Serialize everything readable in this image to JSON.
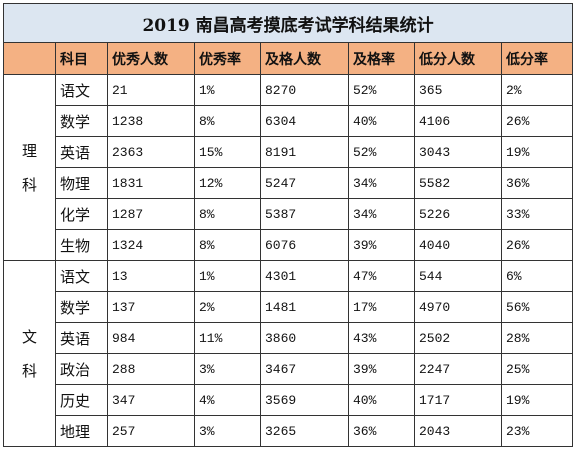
{
  "title": "2019 南昌高考摸底考试学科结果统计",
  "headers": [
    "",
    "科目",
    "优秀人数",
    "优秀率",
    "及格人数",
    "及格率",
    "低分人数",
    "低分率"
  ],
  "groups": [
    {
      "label": [
        "理",
        "科"
      ],
      "rows": [
        [
          "语文",
          "21",
          "1%",
          "8270",
          "52%",
          "365",
          "2%"
        ],
        [
          "数学",
          "1238",
          "8%",
          "6304",
          "40%",
          "4106",
          "26%"
        ],
        [
          "英语",
          "2363",
          "15%",
          "8191",
          "52%",
          "3043",
          "19%"
        ],
        [
          "物理",
          "1831",
          "12%",
          "5247",
          "34%",
          "5582",
          "36%"
        ],
        [
          "化学",
          "1287",
          "8%",
          "5387",
          "34%",
          "5226",
          "33%"
        ],
        [
          "生物",
          "1324",
          "8%",
          "6076",
          "39%",
          "4040",
          "26%"
        ]
      ]
    },
    {
      "label": [
        "文",
        "科"
      ],
      "rows": [
        [
          "语文",
          "13",
          "1%",
          "4301",
          "47%",
          "544",
          "6%"
        ],
        [
          "数学",
          "137",
          "2%",
          "1481",
          "17%",
          "4970",
          "56%"
        ],
        [
          "英语",
          "984",
          "11%",
          "3860",
          "43%",
          "2502",
          "28%"
        ],
        [
          "政治",
          "288",
          "3%",
          "3467",
          "39%",
          "2247",
          "25%"
        ],
        [
          "历史",
          "347",
          "4%",
          "3569",
          "40%",
          "1717",
          "19%"
        ],
        [
          "地理",
          "257",
          "3%",
          "3265",
          "36%",
          "2043",
          "23%"
        ]
      ]
    }
  ],
  "colors": {
    "title_background": "#dce6f1",
    "header_background": "#f4b183",
    "border": "#333333"
  }
}
